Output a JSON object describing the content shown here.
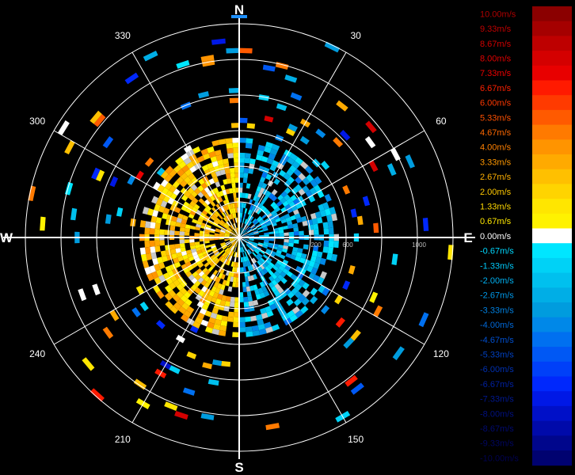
{
  "chart_data": {
    "type": "polar-radar",
    "compass": {
      "north": "N",
      "east": "E",
      "south": "S",
      "west": "W"
    },
    "degree_labels": [
      {
        "angle": 30,
        "text": "30"
      },
      {
        "angle": 60,
        "text": "60"
      },
      {
        "angle": 120,
        "text": "120"
      },
      {
        "angle": 150,
        "text": "150"
      },
      {
        "angle": 210,
        "text": "210"
      },
      {
        "angle": 240,
        "text": "240"
      },
      {
        "angle": 300,
        "text": "300"
      },
      {
        "angle": 330,
        "text": "330"
      }
    ],
    "range_labels": [
      "200",
      "600",
      "1000"
    ],
    "colorbar": {
      "labels": [
        "10.00m/s",
        "9.33m/s",
        "8.67m/s",
        "8.00m/s",
        "7.33m/s",
        "6.67m/s",
        "6.00m/s",
        "5.33m/s",
        "4.67m/s",
        "4.00m/s",
        "3.33m/s",
        "2.67m/s",
        "2.00m/s",
        "1.33m/s",
        "0.67m/s",
        "0.00m/s",
        "-0.67m/s",
        "-1.33m/s",
        "-2.00m/s",
        "-2.67m/s",
        "-3.33m/s",
        "-4.00m/s",
        "-4.67m/s",
        "-5.33m/s",
        "-6.00m/s",
        "-6.67m/s",
        "-7.33m/s",
        "-8.00m/s",
        "-8.67m/s",
        "-9.33m/s",
        "-10.00m/s"
      ],
      "colors": [
        "#8b0000",
        "#a50000",
        "#be0000",
        "#d40000",
        "#e80000",
        "#ff1a00",
        "#ff3a00",
        "#ff5a00",
        "#ff7a00",
        "#ff9400",
        "#ffaa00",
        "#ffc000",
        "#ffd400",
        "#ffe600",
        "#fff200",
        "#ffffff",
        "#00e6ff",
        "#00d2f6",
        "#00c0ee",
        "#00aee6",
        "#009cde",
        "#0088e8",
        "#0070f0",
        "#0058f4",
        "#0040f8",
        "#0028fc",
        "#0018e6",
        "#0010c8",
        "#000aaa",
        "#00068c",
        "#000270"
      ],
      "text_colors": [
        "#b00000",
        "#c00000",
        "#d00000",
        "#e00000",
        "#f00000",
        "#ff2000",
        "#ff3800",
        "#ff5000",
        "#ff6800",
        "#ff8000",
        "#ff9800",
        "#ffb000",
        "#ffc800",
        "#ffd800",
        "#ffe800",
        "#ffffff",
        "#00d8ff",
        "#00c8f8",
        "#00b0f0",
        "#0098e8",
        "#0080e0",
        "#0068d8",
        "#0050d0",
        "#0040c0",
        "#0030b0",
        "#0020a0",
        "#001890",
        "#001080",
        "#000a70",
        "#000660",
        "#000250"
      ]
    },
    "range_rings": [
      200,
      400,
      600,
      800,
      1000
    ],
    "max_range": 1200,
    "velocity_range": [
      -10,
      10
    ],
    "sectors": [
      {
        "az_from": 180,
        "az_to": 360,
        "r_from": 0,
        "r_to": 560,
        "mean_velocity": 2.0,
        "fill": 0.75
      },
      {
        "az_from": 0,
        "az_to": 180,
        "r_from": 0,
        "r_to": 560,
        "mean_velocity": -2.5,
        "fill": 0.6
      },
      {
        "az_from": 0,
        "az_to": 360,
        "r_from": 560,
        "r_to": 1200,
        "mean_velocity": 0,
        "fill": 0.06
      }
    ]
  }
}
